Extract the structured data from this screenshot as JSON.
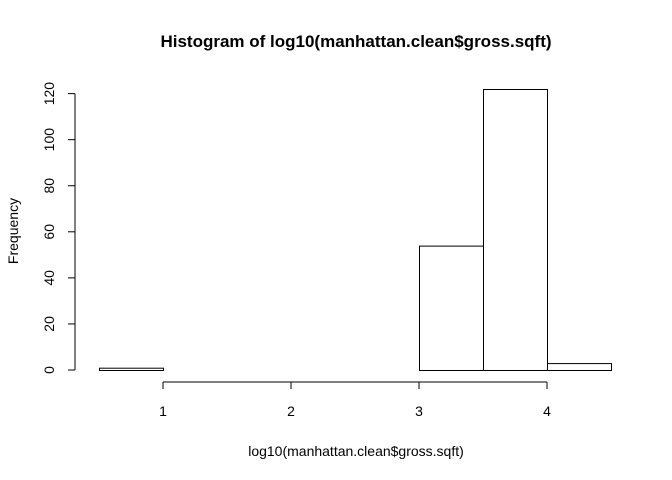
{
  "chart_data": {
    "type": "bar",
    "title": "Histogram of log10(manhattan.clean$gross.sqft)",
    "xlabel": "log10(manhattan.clean$gross.sqft)",
    "ylabel": "Frequency",
    "bins": [
      {
        "x0": 0.5,
        "x1": 1.0,
        "count": 1
      },
      {
        "x0": 1.0,
        "x1": 1.5,
        "count": 0
      },
      {
        "x0": 1.5,
        "x1": 2.0,
        "count": 0
      },
      {
        "x0": 2.0,
        "x1": 2.5,
        "count": 0
      },
      {
        "x0": 2.5,
        "x1": 3.0,
        "count": 0
      },
      {
        "x0": 3.0,
        "x1": 3.5,
        "count": 54
      },
      {
        "x0": 3.5,
        "x1": 4.0,
        "count": 122
      },
      {
        "x0": 4.0,
        "x1": 4.5,
        "count": 3
      }
    ],
    "xticks": [
      "1",
      "2",
      "3",
      "4"
    ],
    "yticks": [
      "0",
      "20",
      "40",
      "60",
      "80",
      "100",
      "120"
    ],
    "xlim": [
      0.5,
      4.5
    ],
    "ylim": [
      0,
      122
    ],
    "grid": false,
    "bar_fill": "#ffffff",
    "bar_stroke": "#000000"
  }
}
